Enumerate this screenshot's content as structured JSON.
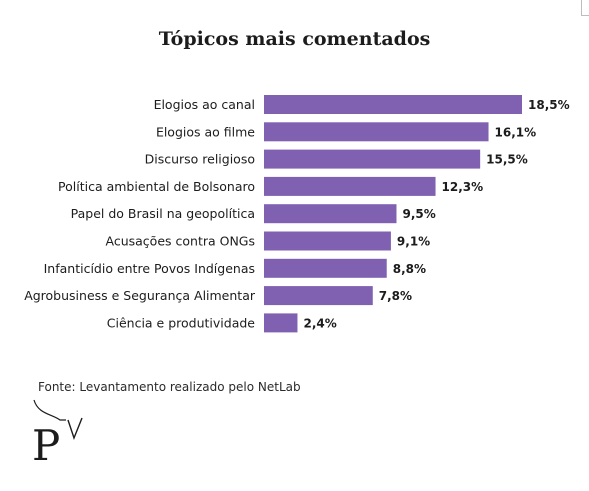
{
  "title": "Tópicos mais comentados",
  "source": "Fonte: Levantamento realizado pelo NetLab",
  "colors": {
    "bar": "#8060b0",
    "text": "#1c1c1c"
  },
  "chart_data": {
    "type": "bar",
    "orientation": "horizontal",
    "title": "Tópicos mais comentados",
    "categories": [
      "Elogios ao canal",
      "Elogios ao filme",
      "Discurso religioso",
      "Política ambiental de Bolsonaro",
      "Papel do Brasil na geopolítica",
      "Acusações contra ONGs",
      "Infanticídio entre Povos Indígenas",
      "Agrobusiness e Segurança Alimentar",
      "Ciência e produtividade"
    ],
    "values": [
      18.5,
      16.1,
      15.5,
      12.3,
      9.5,
      9.1,
      8.8,
      7.8,
      2.4
    ],
    "data_labels": [
      "18,5%",
      "16,1%",
      "15,5%",
      "12,3%",
      "9,5%",
      "9,1%",
      "8,8%",
      "7,8%",
      "2,4%"
    ],
    "unit": "%",
    "grid": false,
    "legend": "none"
  },
  "logo": {
    "icon": "pv-logo",
    "text": "P"
  }
}
